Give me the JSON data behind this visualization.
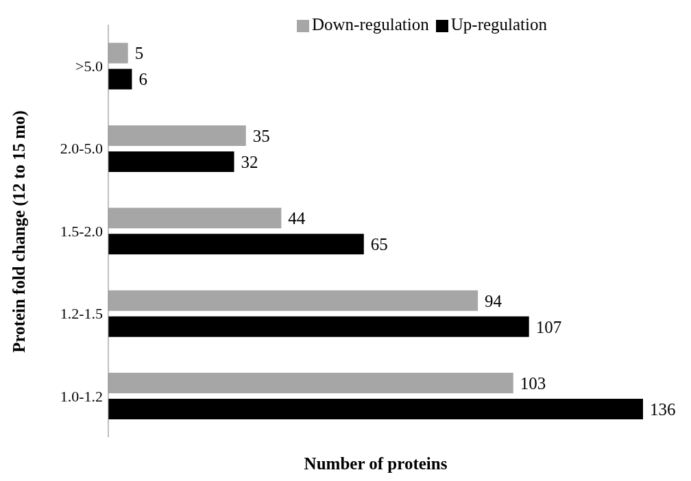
{
  "chart_data": {
    "type": "bar",
    "orientation": "horizontal",
    "xlabel": "Number of proteins",
    "ylabel": "Protein fold change (12 to 15 mo)",
    "categories": [
      ">5.0",
      "2.0-5.0",
      "1.5-2.0",
      "1.2-1.5",
      "1.0-1.2"
    ],
    "series": [
      {
        "name": "Down-regulation",
        "color": "#a6a6a6",
        "values": [
          5,
          35,
          44,
          94,
          103
        ]
      },
      {
        "name": "Up-regulation",
        "color": "#000000",
        "values": [
          6,
          32,
          65,
          107,
          136
        ]
      }
    ],
    "data_labels": true,
    "legend": "top right",
    "tick_labels": "y"
  }
}
